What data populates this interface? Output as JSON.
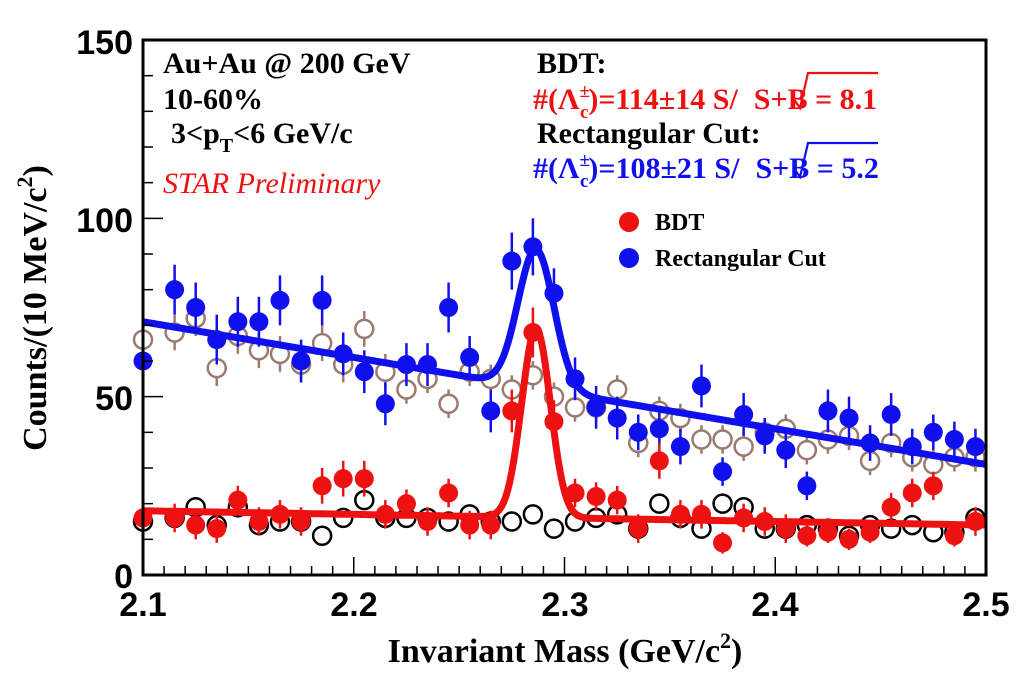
{
  "chart_data": {
    "type": "scatter",
    "xlabel": "Invariant Mass (GeV/c",
    "xlabel_sup": "2",
    "xlabel_end": ")",
    "ylabel": "Counts/(10 MeV/c",
    "ylabel_sup": "2",
    "ylabel_end": ")",
    "xlim": [
      2.1,
      2.5
    ],
    "ylim": [
      0,
      150
    ],
    "xticks": [
      "2.1",
      "2.2",
      "2.3",
      "2.4",
      "2.5"
    ],
    "xtick_values": [
      2.1,
      2.2,
      2.3,
      2.4,
      2.5
    ],
    "yticks": [
      "0",
      "50",
      "100",
      "150"
    ],
    "ytick_values": [
      0,
      50,
      100,
      150
    ],
    "annotations": {
      "system": "Au+Au @ 200 GeV",
      "centrality": "10-60%",
      "pt_pre": "3<p",
      "pt_sub": "T",
      "pt_post": "<6 GeV/c",
      "star": "STAR Preliminary",
      "bdt_title": "BDT:",
      "bdt_yield_pre": "#(Λ",
      "bdt_sup": "±",
      "bdt_sub": "c",
      "bdt_yield_post": ")=114±14 S/",
      "bdt_sig": "S+B = 8.1",
      "rect_title": "Rectangular Cut:",
      "rect_yield_pre": "#(Λ",
      "rect_sup": "±",
      "rect_sub": "c",
      "rect_yield_post": ")=108±21 S/",
      "rect_sig": "S+B = 5.2"
    },
    "legend": [
      {
        "label": "BDT",
        "color": "#ee1111"
      },
      {
        "label": "Rectangular Cut",
        "color": "#1010ee"
      }
    ],
    "colors": {
      "bdt": "#ee1111",
      "rect": "#1010ee",
      "rect_bkg": "#9a7b6e",
      "bdt_bkg": "#000000"
    },
    "series": [
      {
        "name": "Rectangular Cut",
        "style": "filled",
        "color": "#1010ee",
        "x": [
          2.1,
          2.115,
          2.125,
          2.135,
          2.145,
          2.155,
          2.165,
          2.175,
          2.185,
          2.195,
          2.205,
          2.215,
          2.225,
          2.235,
          2.245,
          2.255,
          2.265,
          2.275,
          2.285,
          2.295,
          2.305,
          2.315,
          2.325,
          2.335,
          2.345,
          2.355,
          2.365,
          2.375,
          2.385,
          2.395,
          2.405,
          2.415,
          2.425,
          2.435,
          2.445,
          2.455,
          2.465,
          2.475,
          2.485,
          2.495
        ],
        "y": [
          60,
          80,
          75,
          66,
          71,
          71,
          77,
          60,
          77,
          62,
          57,
          48,
          59,
          59,
          75,
          61,
          46,
          88,
          92,
          79,
          55,
          47,
          44,
          40,
          41,
          36,
          53,
          29,
          45,
          39,
          35,
          25,
          46,
          44,
          37,
          45,
          36,
          40,
          38,
          36
        ],
        "err": [
          7,
          7,
          7,
          7,
          7,
          7,
          7,
          6,
          7,
          6,
          6,
          6,
          6,
          6,
          7,
          6,
          6,
          8,
          8,
          7,
          6,
          6,
          6,
          5,
          5,
          5,
          6,
          4,
          6,
          5,
          5,
          4,
          6,
          6,
          5,
          6,
          5,
          5,
          5,
          5
        ]
      },
      {
        "name": "Rectangular Cut background",
        "style": "open",
        "color": "#9a7b6e",
        "x": [
          2.1,
          2.115,
          2.125,
          2.135,
          2.145,
          2.155,
          2.165,
          2.175,
          2.185,
          2.195,
          2.205,
          2.215,
          2.225,
          2.235,
          2.245,
          2.255,
          2.265,
          2.275,
          2.285,
          2.295,
          2.305,
          2.315,
          2.325,
          2.335,
          2.345,
          2.355,
          2.365,
          2.375,
          2.385,
          2.395,
          2.405,
          2.415,
          2.425,
          2.435,
          2.445,
          2.455,
          2.465,
          2.475,
          2.485,
          2.495
        ],
        "y": [
          66,
          68,
          72,
          58,
          67,
          63,
          62,
          59,
          65,
          59,
          69,
          57,
          52,
          55,
          48,
          57,
          55,
          52,
          56,
          50,
          47,
          47,
          52,
          37,
          46,
          44,
          38,
          38,
          36,
          40,
          41,
          35,
          38,
          39,
          32,
          37,
          33,
          31,
          33,
          33
        ],
        "err": [
          5,
          5,
          5,
          5,
          5,
          5,
          5,
          5,
          5,
          5,
          5,
          5,
          4,
          4,
          4,
          4,
          4,
          4,
          4,
          4,
          4,
          4,
          4,
          4,
          4,
          4,
          4,
          4,
          4,
          4,
          4,
          4,
          4,
          4,
          4,
          4,
          4,
          4,
          4,
          4
        ]
      },
      {
        "name": "BDT",
        "style": "filled",
        "color": "#ee1111",
        "x": [
          2.1,
          2.115,
          2.125,
          2.135,
          2.145,
          2.155,
          2.165,
          2.175,
          2.185,
          2.195,
          2.205,
          2.215,
          2.225,
          2.235,
          2.245,
          2.255,
          2.265,
          2.275,
          2.285,
          2.295,
          2.305,
          2.315,
          2.325,
          2.335,
          2.345,
          2.355,
          2.365,
          2.375,
          2.385,
          2.395,
          2.405,
          2.415,
          2.425,
          2.435,
          2.445,
          2.455,
          2.465,
          2.475,
          2.485,
          2.495
        ],
        "y": [
          16,
          16,
          14,
          13,
          21,
          15,
          17,
          15,
          25,
          27,
          27,
          17,
          20,
          15,
          23,
          14,
          14,
          46,
          68,
          43,
          23,
          22,
          21,
          13,
          32,
          17,
          17,
          9,
          16,
          15,
          13,
          11,
          12,
          10,
          12,
          19,
          23,
          25,
          11,
          15
        ],
        "err": [
          4,
          4,
          4,
          4,
          4,
          4,
          4,
          4,
          5,
          5,
          5,
          4,
          4,
          4,
          4,
          4,
          4,
          6,
          7,
          6,
          4,
          4,
          4,
          4,
          5,
          4,
          4,
          3,
          4,
          4,
          4,
          3,
          3,
          3,
          3,
          4,
          4,
          4,
          3,
          4
        ]
      },
      {
        "name": "BDT background",
        "style": "open",
        "color": "#000000",
        "x": [
          2.1,
          2.115,
          2.125,
          2.135,
          2.145,
          2.155,
          2.165,
          2.175,
          2.185,
          2.195,
          2.205,
          2.215,
          2.225,
          2.235,
          2.245,
          2.255,
          2.265,
          2.275,
          2.285,
          2.295,
          2.305,
          2.315,
          2.325,
          2.335,
          2.345,
          2.355,
          2.365,
          2.375,
          2.385,
          2.395,
          2.405,
          2.415,
          2.425,
          2.435,
          2.445,
          2.455,
          2.465,
          2.475,
          2.485,
          2.495
        ],
        "y": [
          15,
          16,
          19,
          14,
          19,
          14,
          15,
          15,
          11,
          16,
          21,
          16,
          16,
          16,
          15,
          17,
          15,
          15,
          17,
          13,
          15,
          16,
          17,
          13,
          20,
          16,
          13,
          20,
          19,
          13,
          13,
          14,
          13,
          11,
          14,
          13,
          14,
          12,
          12,
          16
        ],
        "err": [
          0,
          0,
          0,
          0,
          0,
          0,
          0,
          0,
          0,
          0,
          0,
          0,
          0,
          0,
          0,
          0,
          0,
          0,
          0,
          0,
          0,
          0,
          0,
          0,
          0,
          0,
          0,
          0,
          0,
          0,
          0,
          0,
          0,
          0,
          0,
          0,
          0,
          0,
          0,
          0
        ]
      }
    ],
    "fits": [
      {
        "name": "Rectangular Cut fit",
        "color": "#1010ee",
        "bkg_at_xmin": 71,
        "bkg_at_xmax": 31,
        "peak_amplitude": 39,
        "mean": 2.2865,
        "sigma": 0.0085
      },
      {
        "name": "BDT fit",
        "color": "#ee1111",
        "bkg_at_xmin": 18,
        "bkg_at_xmax": 14,
        "peak_amplitude": 53,
        "mean": 2.2865,
        "sigma": 0.0068
      }
    ]
  }
}
